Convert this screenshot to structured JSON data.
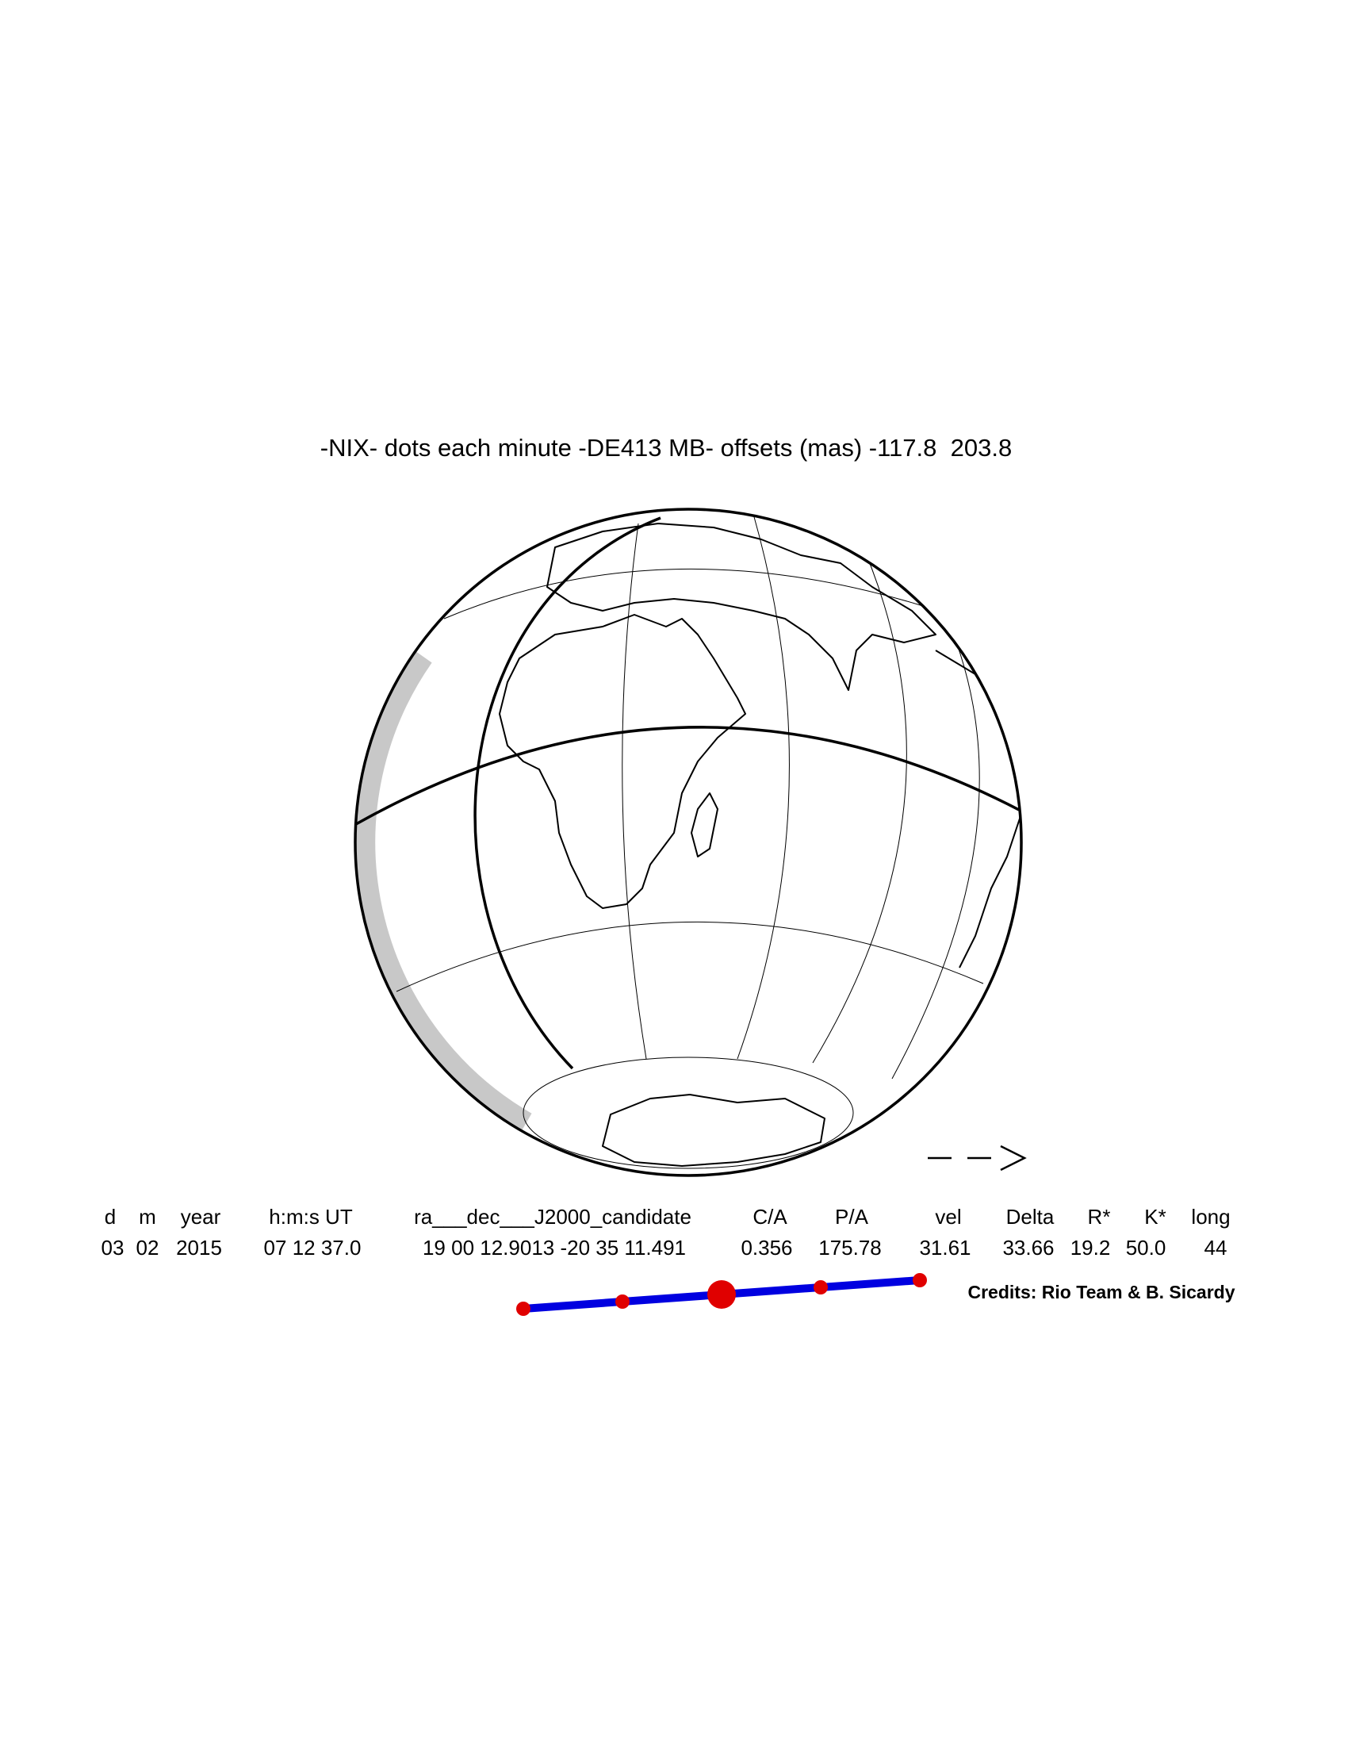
{
  "title": "-NIX- dots each minute -DE413 MB- offsets (mas) -117.8  203.8",
  "table": {
    "headers": [
      "d",
      "m",
      "year",
      "h:m:s UT",
      "ra___dec___J2000_candidate",
      "C/A",
      "P/A",
      "vel",
      "Delta",
      "R*",
      "K*",
      "long"
    ],
    "values": [
      "03",
      "02",
      "2015",
      "07 12 37.0",
      "19 00 12.9013 -20 35 11.491",
      "0.356",
      "175.78",
      "31.61",
      "33.66",
      "19.2",
      "50.0",
      "44"
    ]
  },
  "credits": "Credits: Rio Team & B. Sicardy"
}
